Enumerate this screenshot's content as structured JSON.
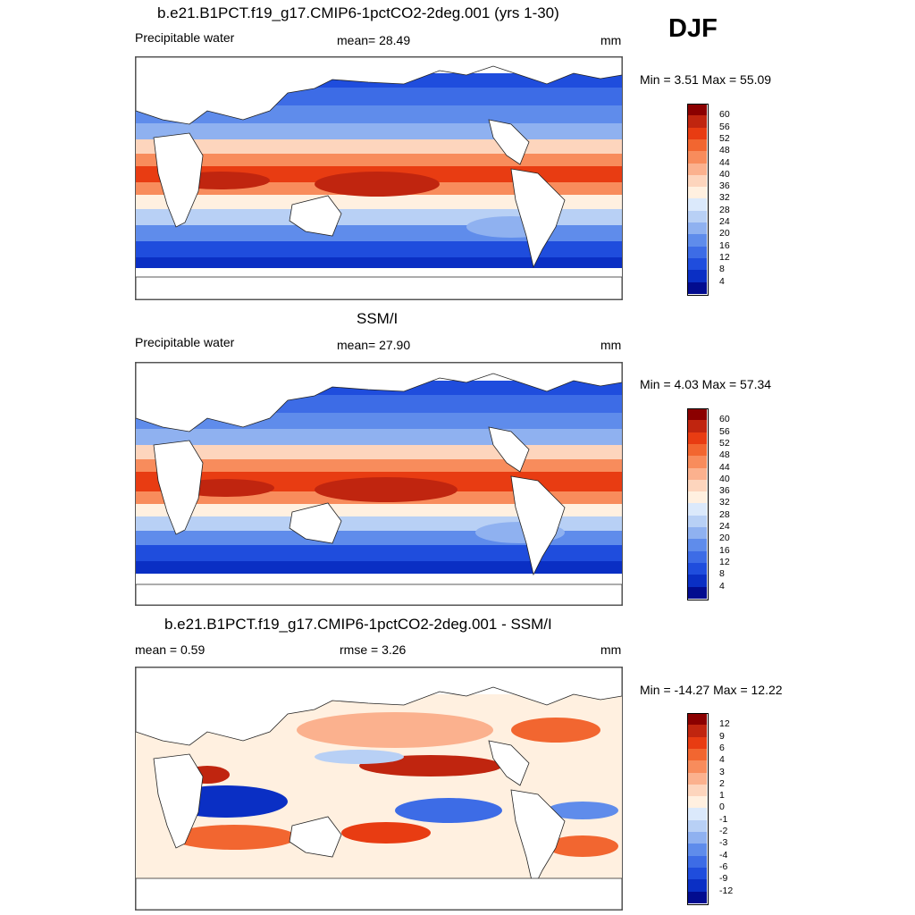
{
  "season": "DJF",
  "panels": [
    {
      "title": "b.e21.B1PCT.f19_g17.CMIP6-1pctCO2-2deg.001 (yrs 1-30)",
      "left_label": "Precipitable water",
      "center_label": "mean=  28.49",
      "units": "mm",
      "minmax": "Min =   3.51 Max =  55.09",
      "colorbar": {
        "colors": [
          "#8b0000",
          "#c0250f",
          "#e83c12",
          "#f26630",
          "#f88c5c",
          "#fbb18e",
          "#fdd5bd",
          "#fff0e0",
          "#dbe9fb",
          "#b8d0f5",
          "#8fb1f0",
          "#5f8ceb",
          "#3d6ce6",
          "#1f4ddd",
          "#0a2fc4",
          "#020c8f"
        ],
        "labels": [
          "60",
          "56",
          "52",
          "48",
          "44",
          "40",
          "36",
          "32",
          "28",
          "24",
          "20",
          "16",
          "12",
          "8",
          "4"
        ]
      }
    },
    {
      "title": "SSM/I",
      "left_label": "Precipitable water",
      "center_label": "mean=  27.90",
      "units": "mm",
      "minmax": "Min =   4.03 Max =  57.34",
      "colorbar": {
        "colors": [
          "#8b0000",
          "#c0250f",
          "#e83c12",
          "#f26630",
          "#f88c5c",
          "#fbb18e",
          "#fdd5bd",
          "#fff0e0",
          "#dbe9fb",
          "#b8d0f5",
          "#8fb1f0",
          "#5f8ceb",
          "#3d6ce6",
          "#1f4ddd",
          "#0a2fc4",
          "#020c8f"
        ],
        "labels": [
          "60",
          "56",
          "52",
          "48",
          "44",
          "40",
          "36",
          "32",
          "28",
          "24",
          "20",
          "16",
          "12",
          "8",
          "4"
        ]
      }
    },
    {
      "title": "b.e21.B1PCT.f19_g17.CMIP6-1pctCO2-2deg.001 - SSM/I",
      "left_label": "mean =   0.59",
      "center_label": "rmse =   3.26",
      "units": "mm",
      "minmax": "Min = -14.27 Max =  12.22",
      "colorbar": {
        "colors": [
          "#8b0000",
          "#c0250f",
          "#e83c12",
          "#f26630",
          "#f88c5c",
          "#fbb18e",
          "#fdd5bd",
          "#fff0e0",
          "#dbe9fb",
          "#b8d0f5",
          "#8fb1f0",
          "#5f8ceb",
          "#3d6ce6",
          "#1f4ddd",
          "#0a2fc4",
          "#020c8f"
        ],
        "labels": [
          "12",
          "9",
          "6",
          "4",
          "3",
          "2",
          "1",
          "0",
          "-1",
          "-2",
          "-3",
          "-4",
          "-6",
          "-9",
          "-12"
        ]
      }
    }
  ]
}
